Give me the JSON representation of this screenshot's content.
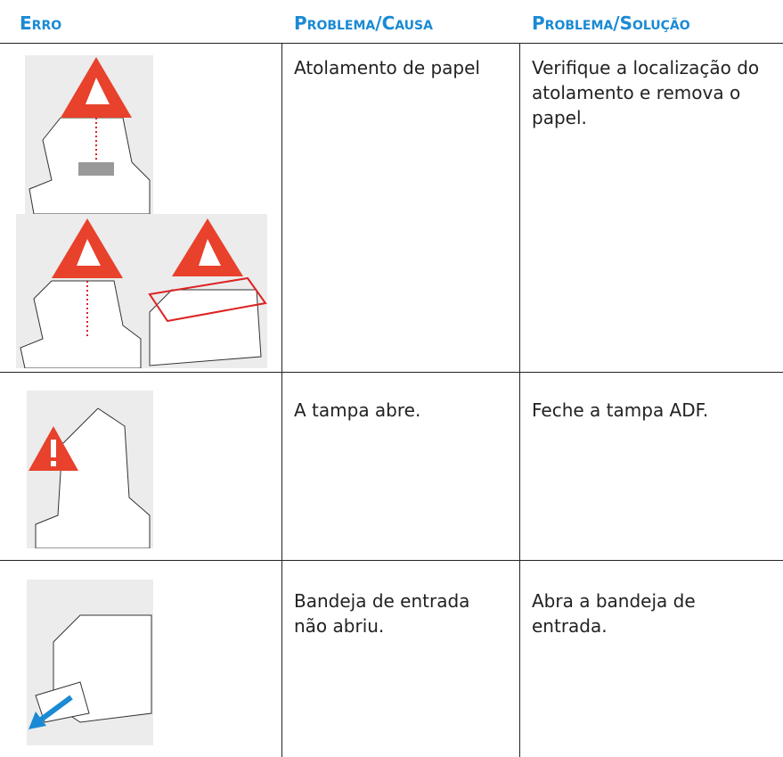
{
  "table": {
    "header": [
      "Erro",
      "Problema/Causa",
      "Problema/Solução"
    ],
    "rows": [
      [
        "Atolamento de papel",
        "Verifique a localização do atolamento e remova o papel."
      ],
      [
        "A tampa abre.",
        "Feche a tampa ADF."
      ],
      [
        "Bandeja de entrada não abriu.",
        "Abra a bandeja de entrada."
      ]
    ]
  }
}
